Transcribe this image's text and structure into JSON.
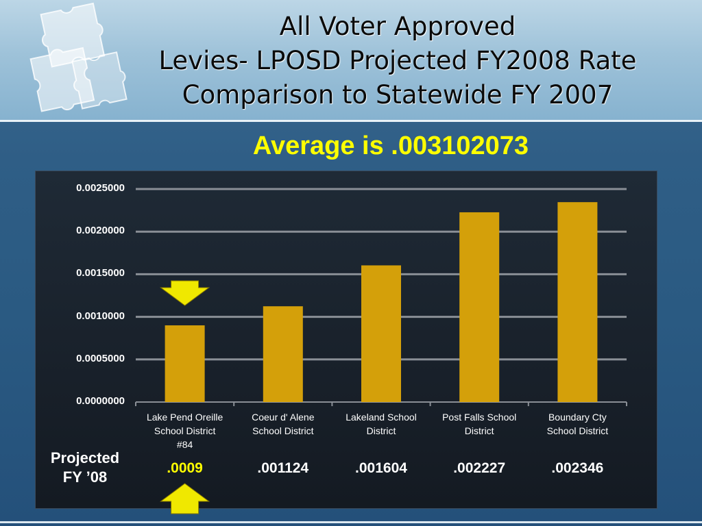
{
  "slide": {
    "title_lines": [
      "All Voter Approved",
      "Levies- LPOSD Projected FY2008 Rate",
      "Comparison to Statewide FY 2007"
    ],
    "subtitle": "Average is .003102073",
    "row_label_lines": [
      "Projected",
      "FY ’08"
    ]
  },
  "chart_data": {
    "type": "bar",
    "categories": [
      [
        "Lake Pend Oreille",
        "School District",
        "#84"
      ],
      [
        "Coeur d' Alene",
        "School District"
      ],
      [
        "Lakeland School",
        "District"
      ],
      [
        "Post Falls School",
        "District"
      ],
      [
        "Boundary Cty",
        "School District"
      ]
    ],
    "values": [
      0.0009,
      0.001124,
      0.001604,
      0.002227,
      0.002346
    ],
    "value_labels": [
      ".0009",
      ".001124",
      ".001604",
      ".002227",
      ".002346"
    ],
    "highlighted_index": 0,
    "y_ticks": [
      "0.0000000",
      "0.0005000",
      "0.0010000",
      "0.0015000",
      "0.0020000",
      "0.0025000"
    ],
    "ylim": [
      0,
      0.0025
    ],
    "grid": true,
    "title": "",
    "xlabel": "",
    "ylabel": ""
  },
  "colors": {
    "bar": "#d4a00a",
    "highlight_text": "#ffff00",
    "arrow": "#f0e800",
    "gridline": "#8a8f96"
  },
  "icons": [
    "puzzle-logo-icon",
    "down-arrow-icon",
    "up-arrow-icon"
  ]
}
